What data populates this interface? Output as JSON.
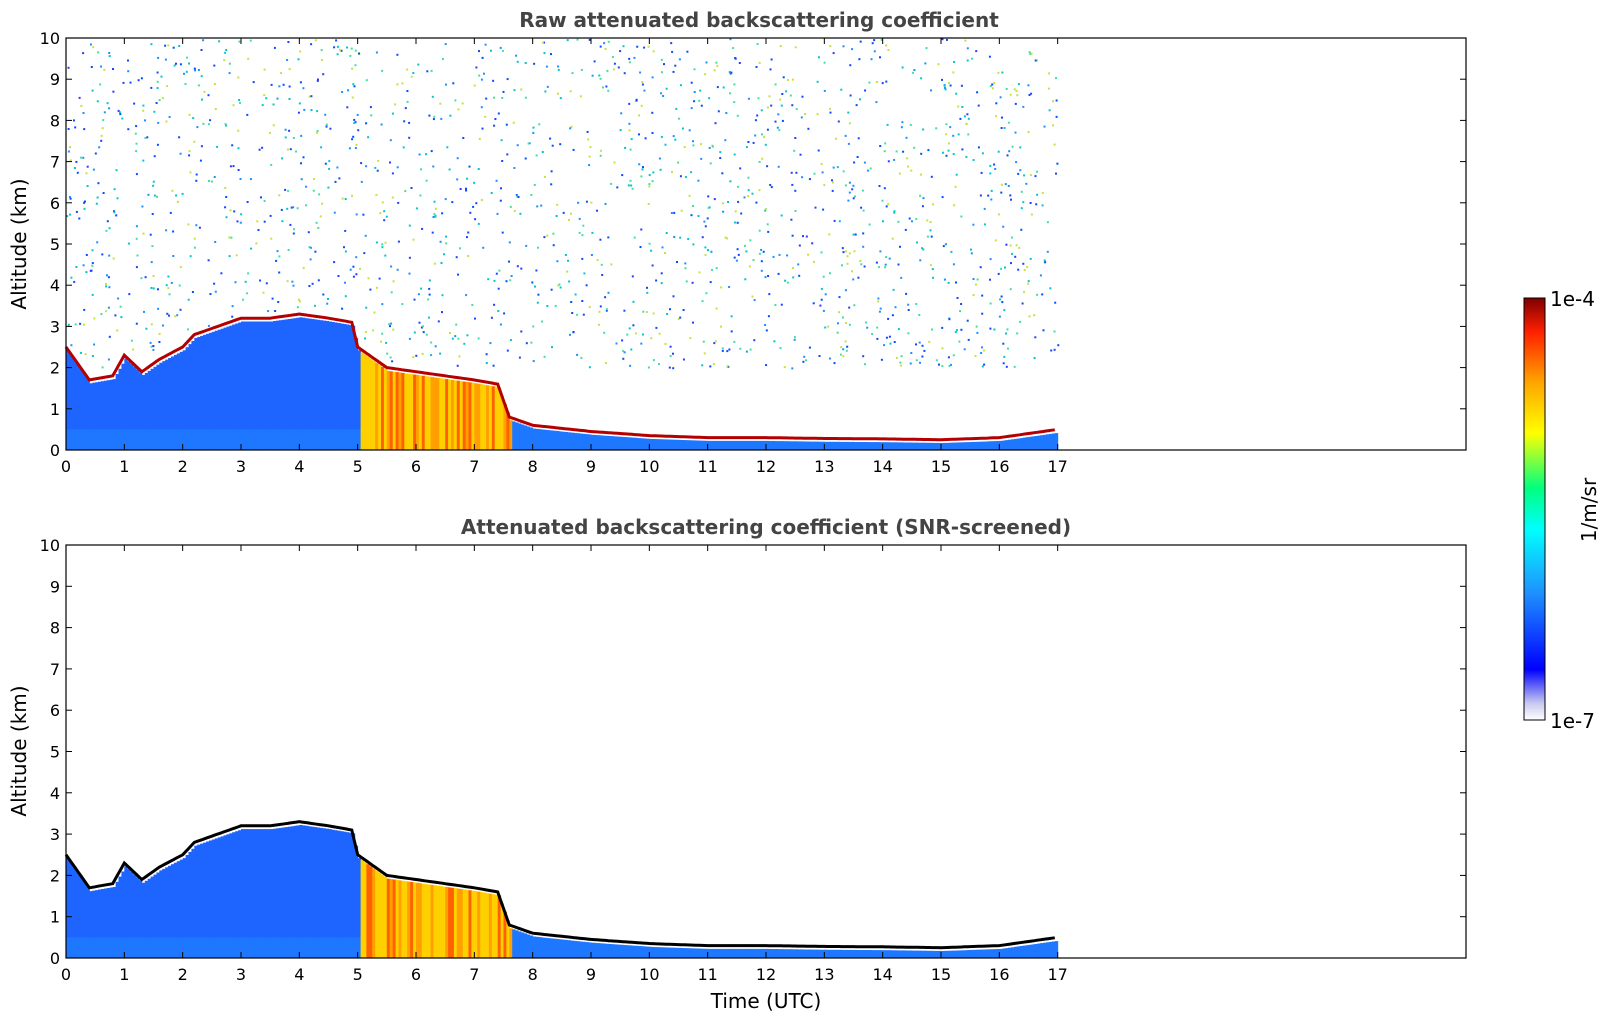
{
  "figure": {
    "colorbar": {
      "label": "1/m/sr",
      "tick_labels": [
        "1e-4",
        "1e-7"
      ],
      "range": [
        1e-07,
        0.0001
      ],
      "scale": "log",
      "colormap": "jet",
      "colors": [
        "#ffffff",
        "#c8c8f0",
        "#0000ff",
        "#1e90ff",
        "#00ffff",
        "#00ff7f",
        "#ffff00",
        "#ffa500",
        "#ff2000",
        "#7f0000"
      ]
    }
  },
  "chart_data": [
    {
      "type": "heatmap",
      "title": "Raw attenuated backscattering coefficient",
      "xlabel": "",
      "ylabel": "Altitude (km)",
      "xlim": [
        0,
        24
      ],
      "ylim": [
        0,
        10
      ],
      "x_ticks": [
        0,
        1,
        2,
        3,
        4,
        5,
        6,
        7,
        8,
        9,
        10,
        11,
        12,
        13,
        14,
        15,
        16,
        17
      ],
      "y_ticks": [
        0,
        1,
        2,
        3,
        4,
        5,
        6,
        7,
        8,
        9,
        10
      ],
      "data_end_time": 17,
      "grid": false,
      "cloud_layer_base_km": {
        "time": [
          0,
          0.4,
          0.8,
          1.0,
          1.3,
          1.6,
          2.0,
          2.2,
          2.6,
          3.0,
          3.5,
          4.0,
          4.5,
          4.9,
          5.0,
          5.5,
          6.0,
          7.0,
          7.4,
          7.6,
          8.0,
          9.0,
          10.0,
          11.0,
          12.0,
          13.0,
          14.0,
          15.0,
          16.0,
          16.5,
          17.0
        ],
        "altitude": [
          2.5,
          1.7,
          1.8,
          2.3,
          1.9,
          2.2,
          2.5,
          2.8,
          3.0,
          3.2,
          3.2,
          3.3,
          3.2,
          3.1,
          2.5,
          2.0,
          1.9,
          1.7,
          1.6,
          0.8,
          0.6,
          0.45,
          0.35,
          0.3,
          0.3,
          0.28,
          0.27,
          0.25,
          0.3,
          0.4,
          0.5
        ]
      }
    },
    {
      "type": "heatmap",
      "title": "Attenuated backscattering coefficient (SNR-screened)",
      "xlabel": "Time (UTC)",
      "ylabel": "Altitude (km)",
      "xlim": [
        0,
        24
      ],
      "ylim": [
        0,
        10
      ],
      "x_ticks": [
        0,
        1,
        2,
        3,
        4,
        5,
        6,
        7,
        8,
        9,
        10,
        11,
        12,
        13,
        14,
        15,
        16,
        17
      ],
      "y_ticks": [
        0,
        1,
        2,
        3,
        4,
        5,
        6,
        7,
        8,
        9,
        10
      ],
      "data_end_time": 17,
      "grid": false,
      "cloud_layer_base_km": {
        "time": [
          0,
          0.4,
          0.8,
          1.0,
          1.3,
          1.6,
          2.0,
          2.2,
          2.6,
          3.0,
          3.5,
          4.0,
          4.5,
          4.9,
          5.0,
          5.5,
          6.0,
          7.0,
          7.4,
          7.6,
          8.0,
          9.0,
          10.0,
          11.0,
          12.0,
          13.0,
          14.0,
          15.0,
          16.0,
          16.5,
          17.0
        ],
        "altitude": [
          2.5,
          1.7,
          1.8,
          2.3,
          1.9,
          2.2,
          2.5,
          2.8,
          3.0,
          3.2,
          3.2,
          3.3,
          3.2,
          3.1,
          2.5,
          2.0,
          1.9,
          1.7,
          1.6,
          0.8,
          0.6,
          0.45,
          0.35,
          0.3,
          0.3,
          0.28,
          0.27,
          0.25,
          0.3,
          0.4,
          0.5
        ]
      }
    }
  ]
}
